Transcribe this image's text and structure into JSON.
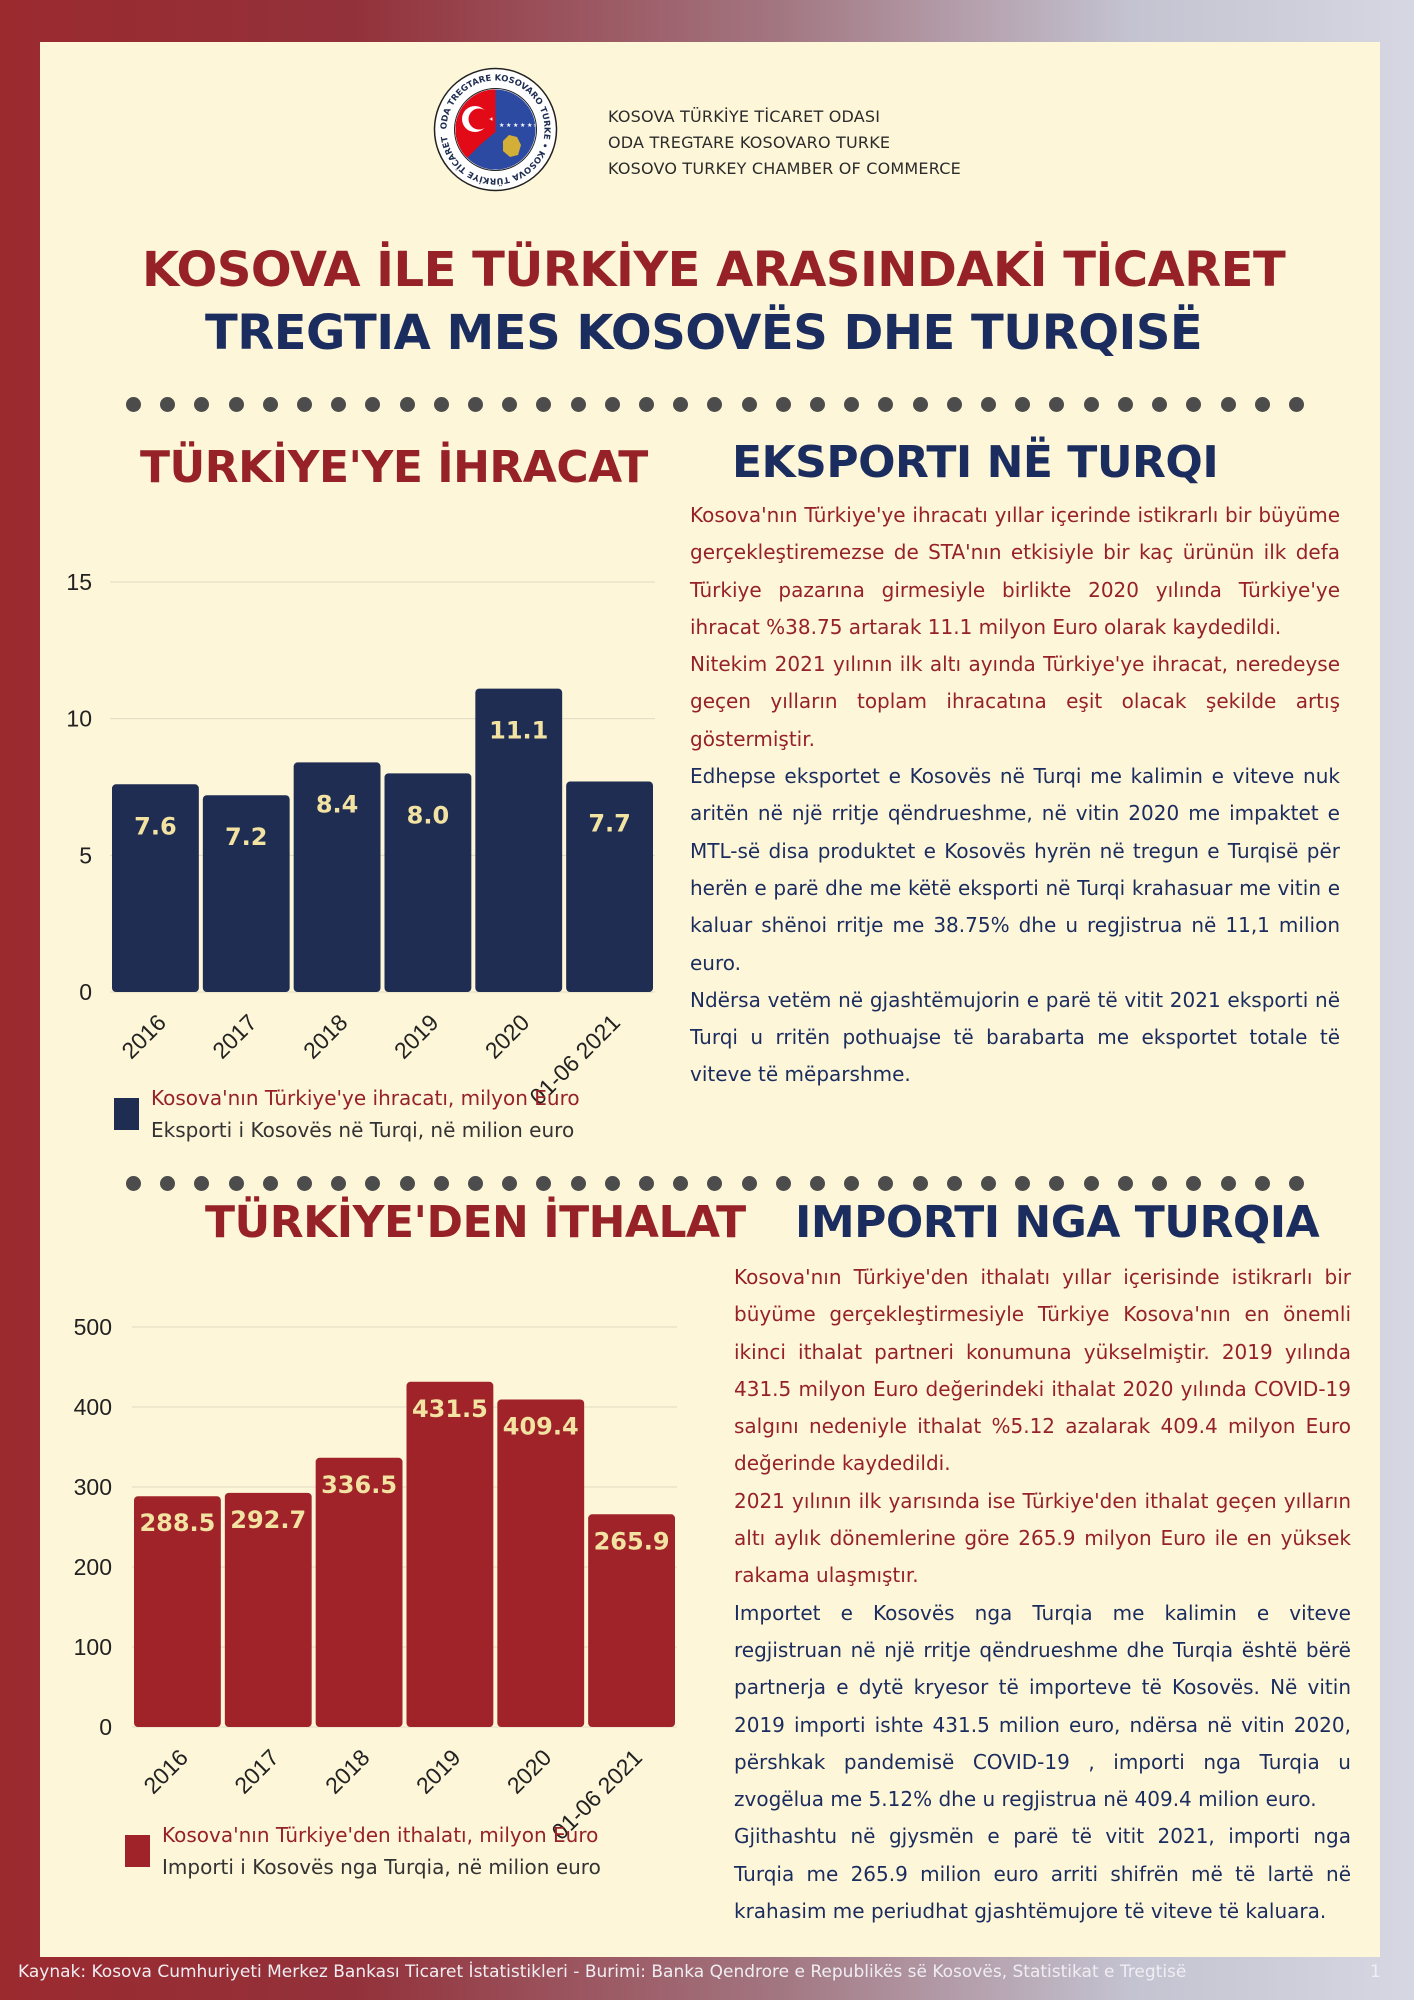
{
  "header": {
    "org_lines": [
      "KOSOVA TÜRKİYE TİCARET ODASI",
      "ODA TREGTARE KOSOVARO TURKE",
      "KOSOVO TURKEY CHAMBER OF COMMERCE"
    ],
    "logo_ring_text": "ODA TREGTARE KOSOVARO TURKE • KOSOVA TÜRKİYE TİCARET ODASI •",
    "title_tr": "KOSOVA İLE TÜRKİYE ARASINDAKİ TİCARET",
    "title_sq": "TREGTIA MES KOSOVËS DHE TURQISË"
  },
  "export_section": {
    "heading_tr": "TÜRKİYE'YE İHRACAT",
    "heading_sq": "EKSPORTI NË TURQI",
    "legend_tr": "Kosova'nın Türkiye'ye ihracatı, milyon Euro",
    "legend_sq": "Eksporti i Kosovës në Turqi, në milion euro",
    "paragraphs": [
      {
        "lang": "tr",
        "text": "Kosova'nın Türkiye'ye ihracatı yıllar içerinde istikrarlı bir büyüme gerçekleştiremezse de STA'nın etkisiyle bir kaç ürünün ilk defa Türkiye pazarına girmesiyle birlikte 2020 yılında Türkiye'ye ihracat %38.75 artarak 11.1 milyon Euro olarak kaydedildi."
      },
      {
        "lang": "tr",
        "text": "Nitekim 2021 yılının ilk altı ayında Türkiye'ye ihracat, neredeyse geçen yılların toplam ihracatına eşit olacak şekilde artış göstermiştir."
      },
      {
        "lang": "sq",
        "text": "Edhepse eksportet e Kosovës në Turqi me kalimin e viteve nuk aritën në një rritje qëndrueshme, në vitin 2020 me impaktet e MTL-së disa produktet e Kosovës hyrën në tregun e Turqisë për herën e parë dhe me këtë eksporti në Turqi krahasuar me vitin e kaluar shënoi rritje me 38.75% dhe u regjistrua në 11,1 milion euro."
      },
      {
        "lang": "sq",
        "text": "Ndërsa vetëm në gjashtëmujorin e parë të vitit 2021 eksporti në Turqi u rritën pothuajse të barabarta me eksportet totale të viteve të mëparshme."
      }
    ]
  },
  "import_section": {
    "heading_tr": "TÜRKİYE'DEN İTHALAT",
    "heading_sq": "IMPORTI NGA TURQIA",
    "legend_tr": "Kosova'nın Türkiye'den ithalatı, milyon Euro",
    "legend_sq": "Importi i Kosovës nga Turqia, në milion euro",
    "paragraphs": [
      {
        "lang": "tr",
        "text": "Kosova'nın Türkiye'den ithalatı yıllar içerisinde istikrarlı bir büyüme gerçekleştirmesiyle Türkiye Kosova'nın en önemli ikinci ithalat partneri konumuna yükselmiştir. 2019 yılında 431.5 milyon Euro değerindeki ithalat 2020 yılında COVID-19 salgını nedeniyle ithalat %5.12 azalarak 409.4 milyon Euro değerinde kaydedildi."
      },
      {
        "lang": "tr",
        "text": "2021 yılının ilk yarısında ise Türkiye'den ithalat geçen yılların altı aylık dönemlerine göre 265.9 milyon Euro ile en yüksek rakama ulaşmıştır."
      },
      {
        "lang": "sq",
        "text": "Importet e Kosovës nga Turqia me kalimin e viteve regjistruan në një rritje qëndrueshme dhe Turqia është bërë partnerja e dytë kryesor të importeve të Kosovës. Në vitin 2019 importi ishte 431.5 milion euro, ndërsa në vitin 2020, përshkak pandemisë COVID-19 , importi nga Turqia u zvogëlua me 5.12% dhe u regjistrua në 409.4 milion euro."
      },
      {
        "lang": "sq",
        "text": "Gjithashtu në gjysmën e parë të vitit 2021, importi nga Turqia me 265.9 milion euro arriti shifrën më të lartë në krahasim me periudhat gjashtëmujore të viteve të kaluara."
      }
    ]
  },
  "footer": {
    "source": "Kaynak: Kosova Cumhuriyeti Merkez Bankası Ticaret İstatistikleri -   Burimi: Banka Qendrore e Republikës së Kosovës, Statistikat e Tregtisë",
    "page_number": "1"
  },
  "colors": {
    "navy": "#1f2d52",
    "red": "#9f2328",
    "value_label": "#f3e3a3",
    "background": "#fdf6d8"
  },
  "chart_data": [
    {
      "type": "bar",
      "categories": [
        "2016",
        "2017",
        "2018",
        "2019",
        "2020",
        "01-06 2021"
      ],
      "values": [
        7.6,
        7.2,
        8.4,
        8.0,
        11.1,
        7.7
      ],
      "value_labels": [
        "7.6",
        "7.2",
        "8.4",
        "8.0",
        "11.1",
        "7.7"
      ],
      "yticks": [
        "0",
        "5",
        "10",
        "15"
      ],
      "ylim": [
        0,
        15
      ],
      "grid": true,
      "legend": "bottom-left",
      "color": "#1f2d52"
    },
    {
      "type": "bar",
      "categories": [
        "2016",
        "2017",
        "2018",
        "2019",
        "2020",
        "01-06 2021"
      ],
      "values": [
        288.5,
        292.7,
        336.5,
        431.5,
        409.4,
        265.9
      ],
      "value_labels": [
        "288.5",
        "292.7",
        "336.5",
        "431.5",
        "409.4",
        "265.9"
      ],
      "yticks": [
        "0",
        "100",
        "200",
        "300",
        "400",
        "500"
      ],
      "ylim": [
        0,
        500
      ],
      "grid": true,
      "legend": "bottom-left",
      "color": "#9f2328"
    }
  ]
}
